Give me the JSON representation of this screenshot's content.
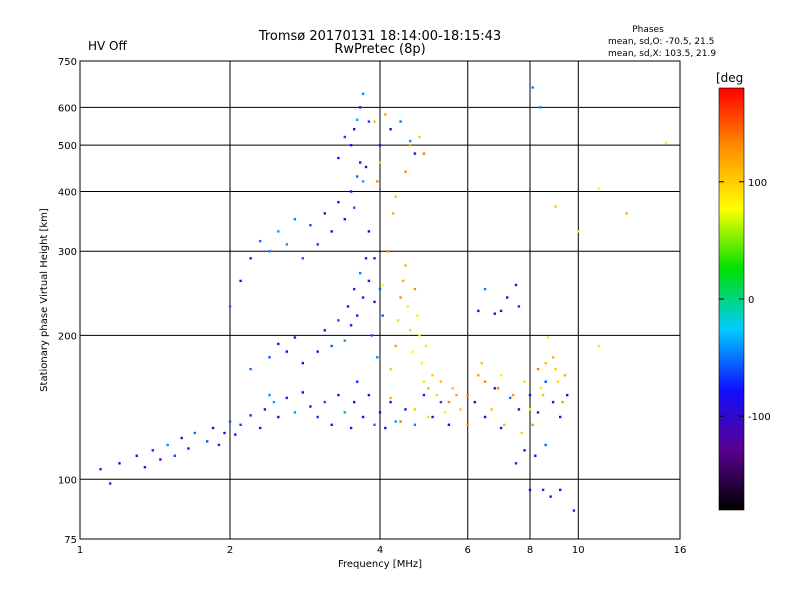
{
  "chart_data": {
    "type": "scatter",
    "status_text": "HV Off",
    "status_color": "#cc0000",
    "title": "Tromsø 20170131 18:14:00-18:15:43",
    "subtitle": "RwPretec (8p)",
    "stats": {
      "title": "Phases",
      "line1": "mean, sd,O: -70.5, 21.5",
      "line2": "mean, sd,X: 103.5, 21.9"
    },
    "xlabel": "Frequency [MHz]",
    "ylabel": "Stationary phase Virtual Height [km]",
    "x_scale": "log2",
    "y_scale": "log",
    "xlim": [
      1,
      16
    ],
    "ylim": [
      75,
      750
    ],
    "x_ticks": [
      1,
      2,
      4,
      6,
      8,
      10,
      16
    ],
    "y_ticks": [
      75,
      100,
      200,
      300,
      400,
      500,
      600,
      750
    ],
    "grid": true,
    "colorbar": {
      "label": "[deg",
      "range": [
        -180,
        180
      ],
      "ticks": [
        100,
        0,
        -100
      ],
      "colormap": [
        "#000000",
        "#5a0090",
        "#1010ff",
        "#00ccff",
        "#00e000",
        "#ffff00",
        "#ff9000",
        "#ff0000"
      ]
    },
    "series": [
      {
        "name": "O",
        "color_value": -70.5,
        "points": [
          [
            1.1,
            105
          ],
          [
            1.15,
            98
          ],
          [
            1.2,
            108
          ],
          [
            1.3,
            112
          ],
          [
            1.35,
            106
          ],
          [
            1.4,
            115
          ],
          [
            1.45,
            110
          ],
          [
            1.5,
            118
          ],
          [
            1.55,
            112
          ],
          [
            1.6,
            122
          ],
          [
            1.65,
            116
          ],
          [
            1.7,
            125
          ],
          [
            1.8,
            120
          ],
          [
            1.85,
            128
          ],
          [
            1.9,
            118
          ],
          [
            1.95,
            125
          ],
          [
            2.0,
            132
          ],
          [
            2.05,
            124
          ],
          [
            2.1,
            130
          ],
          [
            2.2,
            136
          ],
          [
            2.3,
            128
          ],
          [
            2.35,
            140
          ],
          [
            2.4,
            150
          ],
          [
            2.45,
            145
          ],
          [
            2.5,
            135
          ],
          [
            2.6,
            148
          ],
          [
            2.7,
            138
          ],
          [
            2.8,
            152
          ],
          [
            2.9,
            142
          ],
          [
            3.0,
            135
          ],
          [
            3.1,
            145
          ],
          [
            3.2,
            130
          ],
          [
            3.3,
            150
          ],
          [
            3.4,
            138
          ],
          [
            3.5,
            128
          ],
          [
            3.55,
            145
          ],
          [
            3.6,
            160
          ],
          [
            3.7,
            135
          ],
          [
            3.8,
            150
          ],
          [
            3.9,
            130
          ],
          [
            4.0,
            138
          ],
          [
            4.1,
            128
          ],
          [
            4.2,
            145
          ],
          [
            4.3,
            132
          ],
          [
            4.5,
            140
          ],
          [
            4.7,
            130
          ],
          [
            4.9,
            150
          ],
          [
            5.1,
            135
          ],
          [
            5.3,
            145
          ],
          [
            5.5,
            130
          ],
          [
            2.2,
            170
          ],
          [
            2.4,
            180
          ],
          [
            2.5,
            192
          ],
          [
            2.6,
            185
          ],
          [
            2.7,
            198
          ],
          [
            2.8,
            175
          ],
          [
            3.0,
            185
          ],
          [
            3.1,
            205
          ],
          [
            3.2,
            190
          ],
          [
            3.3,
            215
          ],
          [
            3.4,
            195
          ],
          [
            3.45,
            230
          ],
          [
            3.5,
            210
          ],
          [
            3.55,
            250
          ],
          [
            3.6,
            220
          ],
          [
            3.65,
            270
          ],
          [
            3.7,
            240
          ],
          [
            3.75,
            290
          ],
          [
            3.8,
            260
          ],
          [
            3.9,
            235
          ],
          [
            2.0,
            230
          ],
          [
            2.1,
            260
          ],
          [
            2.2,
            290
          ],
          [
            2.3,
            315
          ],
          [
            2.4,
            300
          ],
          [
            2.5,
            330
          ],
          [
            2.6,
            310
          ],
          [
            2.7,
            350
          ],
          [
            2.8,
            290
          ],
          [
            2.9,
            340
          ],
          [
            3.0,
            310
          ],
          [
            3.1,
            360
          ],
          [
            3.2,
            330
          ],
          [
            3.3,
            380
          ],
          [
            3.4,
            350
          ],
          [
            3.5,
            400
          ],
          [
            3.55,
            370
          ],
          [
            3.6,
            430
          ],
          [
            3.65,
            460
          ],
          [
            3.7,
            420
          ],
          [
            3.75,
            450
          ],
          [
            3.3,
            470
          ],
          [
            3.4,
            520
          ],
          [
            3.5,
            500
          ],
          [
            3.55,
            540
          ],
          [
            3.6,
            565
          ],
          [
            3.65,
            600
          ],
          [
            3.7,
            640
          ],
          [
            3.8,
            560
          ],
          [
            4.0,
            500
          ],
          [
            4.2,
            540
          ],
          [
            4.4,
            560
          ],
          [
            4.6,
            510
          ],
          [
            4.7,
            480
          ],
          [
            3.8,
            330
          ],
          [
            3.9,
            290
          ],
          [
            4.0,
            250
          ],
          [
            4.05,
            220
          ],
          [
            3.85,
            200
          ],
          [
            3.95,
            180
          ],
          [
            6.3,
            225
          ],
          [
            6.5,
            250
          ],
          [
            6.8,
            222
          ],
          [
            7.0,
            225
          ],
          [
            7.2,
            240
          ],
          [
            7.5,
            255
          ],
          [
            7.6,
            230
          ],
          [
            8.1,
            660
          ],
          [
            8.4,
            600
          ],
          [
            8.0,
            95
          ],
          [
            8.5,
            95
          ],
          [
            8.8,
            92
          ],
          [
            9.2,
            95
          ],
          [
            9.8,
            86
          ],
          [
            6.2,
            145
          ],
          [
            6.5,
            135
          ],
          [
            6.8,
            155
          ],
          [
            7.0,
            128
          ],
          [
            7.3,
            148
          ],
          [
            7.6,
            140
          ],
          [
            8.0,
            150
          ],
          [
            8.3,
            138
          ],
          [
            8.6,
            160
          ],
          [
            8.9,
            145
          ],
          [
            9.2,
            135
          ],
          [
            9.5,
            150
          ],
          [
            7.5,
            108
          ],
          [
            7.8,
            115
          ],
          [
            8.2,
            112
          ],
          [
            8.6,
            118
          ]
        ]
      },
      {
        "name": "X",
        "color_value": 103.5,
        "points": [
          [
            4.2,
            170
          ],
          [
            4.3,
            190
          ],
          [
            4.35,
            215
          ],
          [
            4.4,
            240
          ],
          [
            4.45,
            260
          ],
          [
            4.5,
            280
          ],
          [
            4.55,
            230
          ],
          [
            4.6,
            205
          ],
          [
            4.65,
            185
          ],
          [
            4.7,
            250
          ],
          [
            4.75,
            220
          ],
          [
            4.8,
            200
          ],
          [
            4.85,
            175
          ],
          [
            4.9,
            160
          ],
          [
            4.95,
            190
          ],
          [
            5.0,
            155
          ],
          [
            5.1,
            165
          ],
          [
            5.2,
            150
          ],
          [
            5.3,
            160
          ],
          [
            5.5,
            145
          ],
          [
            5.6,
            155
          ],
          [
            5.8,
            140
          ],
          [
            4.05,
            255
          ],
          [
            4.15,
            300
          ],
          [
            4.25,
            360
          ],
          [
            4.3,
            390
          ],
          [
            4.5,
            440
          ],
          [
            4.6,
            500
          ],
          [
            4.8,
            520
          ],
          [
            4.9,
            480
          ],
          [
            3.95,
            420
          ],
          [
            4.0,
            460
          ],
          [
            3.9,
            560
          ],
          [
            4.1,
            580
          ],
          [
            6.3,
            165
          ],
          [
            6.5,
            160
          ],
          [
            6.7,
            140
          ],
          [
            6.9,
            155
          ],
          [
            7.1,
            130
          ],
          [
            7.4,
            150
          ],
          [
            7.7,
            125
          ],
          [
            8.0,
            140
          ],
          [
            8.3,
            170
          ],
          [
            8.6,
            175
          ],
          [
            8.9,
            180
          ],
          [
            9.1,
            160
          ],
          [
            9.3,
            145
          ],
          [
            8.1,
            130
          ],
          [
            8.5,
            150
          ],
          [
            9.0,
            170
          ],
          [
            6.0,
            130
          ],
          [
            5.7,
            150
          ],
          [
            5.4,
            138
          ],
          [
            5.0,
            135
          ],
          [
            4.7,
            140
          ],
          [
            4.4,
            132
          ],
          [
            4.2,
            148
          ],
          [
            11.0,
            405
          ],
          [
            12.5,
            360
          ],
          [
            15.0,
            505
          ],
          [
            10.0,
            330
          ],
          [
            9.0,
            372
          ],
          [
            11.0,
            190
          ],
          [
            8.7,
            198
          ],
          [
            6.0,
            150
          ],
          [
            6.4,
            175
          ],
          [
            7.0,
            165
          ],
          [
            7.8,
            160
          ],
          [
            8.4,
            155
          ],
          [
            9.4,
            165
          ]
        ]
      }
    ]
  }
}
